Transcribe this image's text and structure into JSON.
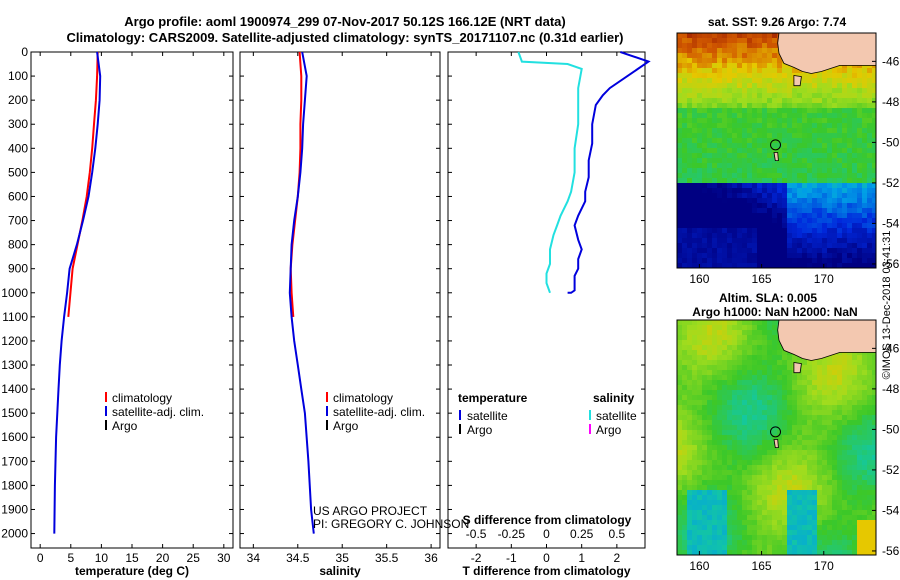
{
  "header": {
    "title_line1": "Argo profile: aoml 1900974_299 07-Nov-2017 50.12S 166.12E (NRT data)",
    "title_line2": "Climatology: CARS2009. Satellite-adjusted climatology: synTS_20171107.nc (0.31d earlier)"
  },
  "colors": {
    "climatology": "#ff0000",
    "satellite": "#0000dd",
    "argo": "#000000",
    "sal_satellite": "#22e0e0",
    "sal_argo": "#ff00ff"
  },
  "chart_data": [
    {
      "id": "temperature",
      "type": "line",
      "xlabel": "temperature (deg C)",
      "xlim": [
        -1.5,
        31.5
      ],
      "xticks": [
        0,
        5,
        10,
        15,
        20,
        25,
        30
      ],
      "ylim": [
        0,
        2060
      ],
      "yticks": [
        0,
        100,
        200,
        300,
        400,
        500,
        600,
        700,
        800,
        900,
        1000,
        1100,
        1200,
        1300,
        1400,
        1500,
        1600,
        1700,
        1800,
        1900,
        2000
      ],
      "ylabel_direction": "depth (m), increasing downward",
      "series": [
        {
          "name": "climatology",
          "color": "#ff0000",
          "x": [
            9.4,
            9.3,
            9.1,
            8.8,
            8.5,
            8.1,
            7.6,
            6.9,
            6.1,
            5.3,
            4.6
          ],
          "y": [
            0,
            100,
            200,
            300,
            400,
            500,
            600,
            700,
            800,
            900,
            1100
          ]
        },
        {
          "name": "satellite-adj. clim.",
          "color": "#0000dd",
          "x": [
            9.3,
            9.8,
            9.7,
            9.4,
            9.0,
            8.5,
            7.9,
            7.0,
            6.0,
            4.8,
            4.4,
            3.9,
            3.5,
            3.2,
            3.0,
            2.8,
            2.6,
            2.5,
            2.4,
            2.3
          ],
          "y": [
            0,
            100,
            200,
            300,
            400,
            500,
            600,
            700,
            800,
            900,
            1000,
            1100,
            1200,
            1300,
            1400,
            1500,
            1600,
            1700,
            1800,
            2000
          ]
        }
      ],
      "legend": [
        {
          "label": "climatology",
          "color": "#ff0000"
        },
        {
          "label": "satellite-adj. clim.",
          "color": "#0000dd"
        },
        {
          "label": "Argo",
          "color": "#000000"
        }
      ]
    },
    {
      "id": "salinity",
      "type": "line",
      "xlabel": "salinity",
      "xlim": [
        33.85,
        36.1
      ],
      "xticks": [
        34,
        34.5,
        35,
        35.5,
        36
      ],
      "ylim": [
        0,
        2060
      ],
      "series": [
        {
          "name": "climatology",
          "color": "#ff0000",
          "x": [
            34.52,
            34.54,
            34.54,
            34.53,
            34.53,
            34.52,
            34.5,
            34.47,
            34.44,
            34.42,
            34.43,
            34.45
          ],
          "y": [
            0,
            100,
            200,
            300,
            400,
            500,
            600,
            700,
            800,
            900,
            1000,
            1100
          ]
        },
        {
          "name": "satellite-adj. clim.",
          "color": "#0000dd",
          "x": [
            34.55,
            34.6,
            34.58,
            34.56,
            34.55,
            34.53,
            34.5,
            34.46,
            34.43,
            34.42,
            34.41,
            34.43,
            34.46,
            34.5,
            34.54,
            34.58,
            34.62,
            34.65,
            34.68
          ],
          "y": [
            0,
            100,
            200,
            300,
            400,
            500,
            600,
            700,
            800,
            900,
            1000,
            1100,
            1200,
            1300,
            1400,
            1500,
            1700,
            1900,
            2000
          ]
        }
      ],
      "legend": [
        {
          "label": "climatology",
          "color": "#ff0000"
        },
        {
          "label": "satellite-adj. clim.",
          "color": "#0000dd"
        },
        {
          "label": "Argo",
          "color": "#000000"
        }
      ],
      "annotations": [
        "US ARGO PROJECT",
        "PI: GREGORY C. JOHNSON"
      ]
    },
    {
      "id": "difference",
      "type": "line",
      "xlabel": "T difference from climatology",
      "xlabel_top": "S difference from climatology",
      "xlim": [
        -2.8,
        2.8
      ],
      "xticks": [
        -2,
        -1,
        0,
        1,
        2
      ],
      "s_ticks": [
        "-0.5",
        "-0.25",
        "0",
        "0.25",
        "0.5"
      ],
      "ylim": [
        0,
        2060
      ],
      "series": [
        {
          "name": "temperature satellite",
          "color": "#0000dd",
          "x": [
            2.1,
            2.3,
            2.9,
            2.4,
            1.8,
            1.6,
            1.4,
            1.3,
            1.3,
            1.2,
            1.2,
            1.1,
            1.1,
            0.9,
            0.8,
            0.9,
            1.0,
            0.9,
            0.9,
            0.8,
            0.8,
            0.8,
            0.7,
            0.6
          ],
          "y": [
            0,
            10,
            40,
            90,
            150,
            180,
            220,
            300,
            380,
            450,
            520,
            580,
            620,
            680,
            720,
            780,
            820,
            860,
            900,
            930,
            960,
            990,
            1000,
            1000
          ]
        },
        {
          "name": "salinity satellite",
          "color": "#22e0e0",
          "x": [
            -0.8,
            -0.7,
            0.6,
            1.0,
            0.9,
            0.9,
            0.8,
            0.8,
            0.7,
            0.6,
            0.4,
            0.3,
            0.2,
            0.1,
            0.1,
            0.0,
            0.0,
            0.1
          ],
          "y": [
            0,
            40,
            50,
            70,
            150,
            300,
            400,
            500,
            580,
            620,
            680,
            720,
            760,
            820,
            880,
            920,
            960,
            1000
          ]
        }
      ],
      "legend_left_title": "temperature",
      "legend_right_title": "salinity",
      "legend_left": [
        {
          "label": "satellite",
          "color": "#0000dd"
        },
        {
          "label": "Argo",
          "color": "#000000"
        }
      ],
      "legend_right": [
        {
          "label": "satellite",
          "color": "#22e0e0"
        },
        {
          "label": "Argo",
          "color": "#ff00ff"
        }
      ]
    },
    {
      "id": "sst_map",
      "type": "heatmap",
      "title": "sat. SST: 9.26 Argo: 7.74",
      "xlim": [
        158.2,
        174.2
      ],
      "ylim": [
        -56.2,
        -44.6
      ],
      "xticks": [
        160,
        165,
        170
      ],
      "yticks": [
        -46,
        -48,
        -50,
        -52,
        -54,
        -56
      ],
      "argo_position": {
        "lon": 166.12,
        "lat": -50.12
      }
    },
    {
      "id": "sla_map",
      "type": "heatmap",
      "title": "Altim. SLA: 0.005",
      "subtitle": "Argo h1000: NaN h2000: NaN",
      "xlim": [
        158.2,
        174.2
      ],
      "ylim": [
        -56.2,
        -44.6
      ],
      "xticks": [
        160,
        165,
        170
      ],
      "yticks": [
        -46,
        -48,
        -50,
        -52,
        -54,
        -56
      ],
      "argo_position": {
        "lon": 166.12,
        "lat": -50.12
      }
    }
  ],
  "side_label": "©IMOS 13-Dec-2018 03:41:31"
}
